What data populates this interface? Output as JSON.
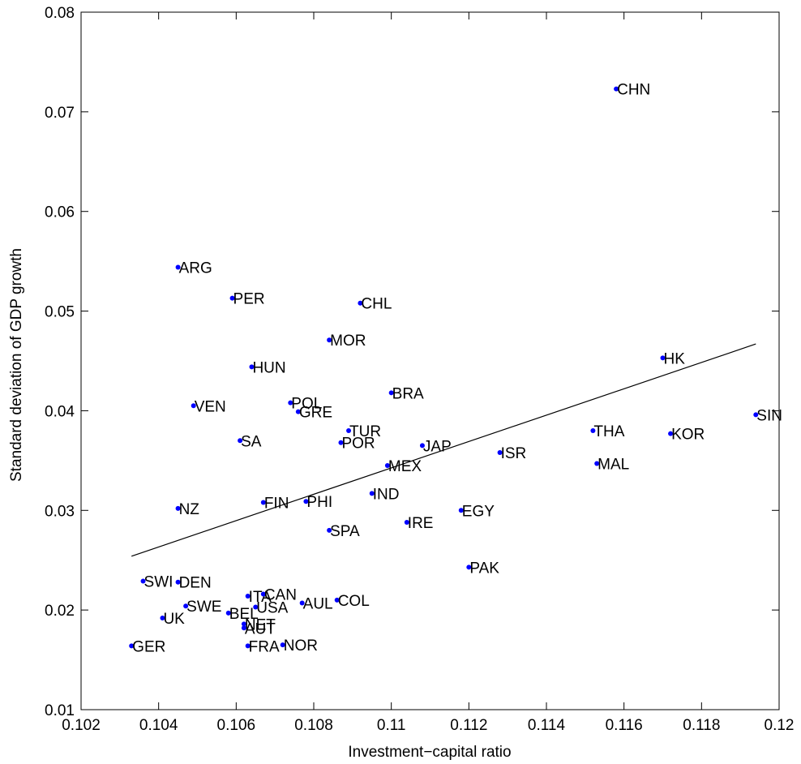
{
  "chart_data": {
    "type": "scatter",
    "title": "",
    "xlabel": "Investment−capital ratio",
    "ylabel": "Standard deviation of GDP growth",
    "xlim": [
      0.102,
      0.12
    ],
    "ylim": [
      0.01,
      0.08
    ],
    "xticks": [
      "0.102",
      "0.104",
      "0.106",
      "0.108",
      "0.11",
      "0.112",
      "0.114",
      "0.116",
      "0.118",
      "0.12"
    ],
    "yticks": [
      "0.01",
      "0.02",
      "0.03",
      "0.04",
      "0.05",
      "0.06",
      "0.07",
      "0.08"
    ],
    "grid": false,
    "box": true,
    "marker_color": "#0000ff",
    "trend_color": "#000000",
    "trendline": {
      "x": [
        0.1033,
        0.1194
      ],
      "y": [
        0.0254,
        0.0467
      ]
    },
    "points": [
      {
        "label": "CHN",
        "x": 0.1158,
        "y": 0.0723
      },
      {
        "label": "ARG",
        "x": 0.1045,
        "y": 0.0544
      },
      {
        "label": "PER",
        "x": 0.1059,
        "y": 0.0513
      },
      {
        "label": "CHL",
        "x": 0.1092,
        "y": 0.0508
      },
      {
        "label": "MOR",
        "x": 0.1084,
        "y": 0.0471
      },
      {
        "label": "HUN",
        "x": 0.1064,
        "y": 0.0444
      },
      {
        "label": "HK",
        "x": 0.117,
        "y": 0.0453
      },
      {
        "label": "BRA",
        "x": 0.11,
        "y": 0.0418
      },
      {
        "label": "VEN",
        "x": 0.1049,
        "y": 0.0405
      },
      {
        "label": "POL",
        "x": 0.1074,
        "y": 0.0408
      },
      {
        "label": "GRE",
        "x": 0.1076,
        "y": 0.0399
      },
      {
        "label": "SIN",
        "x": 0.1194,
        "y": 0.0396
      },
      {
        "label": "TUR",
        "x": 0.1089,
        "y": 0.038
      },
      {
        "label": "THA",
        "x": 0.1152,
        "y": 0.038
      },
      {
        "label": "KOR",
        "x": 0.1172,
        "y": 0.0377
      },
      {
        "label": "SA",
        "x": 0.1061,
        "y": 0.037
      },
      {
        "label": "POR",
        "x": 0.1087,
        "y": 0.0368
      },
      {
        "label": "JAP",
        "x": 0.1108,
        "y": 0.0365
      },
      {
        "label": "ISR",
        "x": 0.1128,
        "y": 0.0358
      },
      {
        "label": "MEX",
        "x": 0.1099,
        "y": 0.0345
      },
      {
        "label": "MAL",
        "x": 0.1153,
        "y": 0.0347
      },
      {
        "label": "IND",
        "x": 0.1095,
        "y": 0.0317
      },
      {
        "label": "NZ",
        "x": 0.1045,
        "y": 0.0302
      },
      {
        "label": "FIN",
        "x": 0.1067,
        "y": 0.0308
      },
      {
        "label": "PHI",
        "x": 0.1078,
        "y": 0.0309
      },
      {
        "label": "EGY",
        "x": 0.1118,
        "y": 0.03
      },
      {
        "label": "IRE",
        "x": 0.1104,
        "y": 0.0288
      },
      {
        "label": "SPA",
        "x": 0.1084,
        "y": 0.028
      },
      {
        "label": "PAK",
        "x": 0.112,
        "y": 0.0243
      },
      {
        "label": "SWI",
        "x": 0.1036,
        "y": 0.0229
      },
      {
        "label": "DEN",
        "x": 0.1045,
        "y": 0.0228
      },
      {
        "label": "ITA",
        "x": 0.1063,
        "y": 0.0214
      },
      {
        "label": "CAN",
        "x": 0.1067,
        "y": 0.0216
      },
      {
        "label": "USA",
        "x": 0.1065,
        "y": 0.0203
      },
      {
        "label": "AUL",
        "x": 0.1077,
        "y": 0.0207
      },
      {
        "label": "COL",
        "x": 0.1086,
        "y": 0.021
      },
      {
        "label": "SWE",
        "x": 0.1047,
        "y": 0.0204
      },
      {
        "label": "BEL",
        "x": 0.1058,
        "y": 0.0197
      },
      {
        "label": "UK",
        "x": 0.1041,
        "y": 0.0192
      },
      {
        "label": "NET",
        "x": 0.1062,
        "y": 0.0186
      },
      {
        "label": "AUT",
        "x": 0.1062,
        "y": 0.0182
      },
      {
        "label": "GER",
        "x": 0.1033,
        "y": 0.0164
      },
      {
        "label": "FRA",
        "x": 0.1063,
        "y": 0.0164
      },
      {
        "label": "NOR",
        "x": 0.1072,
        "y": 0.0165
      }
    ]
  }
}
